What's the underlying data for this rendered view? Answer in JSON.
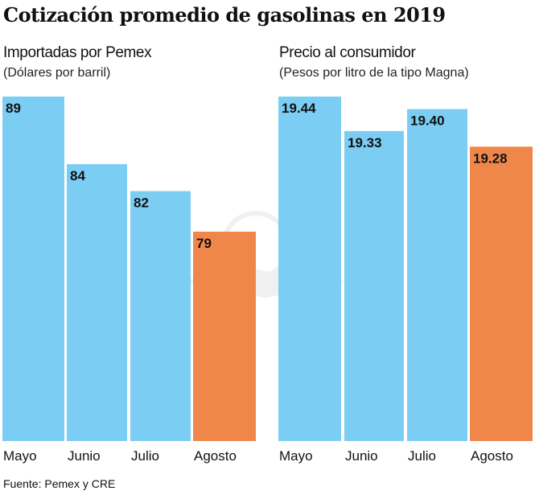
{
  "title": "Cotización promedio de gasolinas en 2019",
  "source": "Fuente: Pemex y CRE",
  "colors": {
    "regular": "#7ccdf4",
    "highlight": "#f0874a"
  },
  "chart_data": [
    {
      "type": "bar",
      "title": "Importadas por Pemex",
      "subtitle": "(Dólares por barril)",
      "categories": [
        "Mayo",
        "Junio",
        "Julio",
        "Agosto"
      ],
      "values": [
        89,
        84,
        82,
        79
      ],
      "labels": [
        "89",
        "84",
        "82",
        "79"
      ],
      "highlight": [
        false,
        false,
        false,
        true
      ],
      "ylim": [
        63.5,
        89
      ],
      "grid": false
    },
    {
      "type": "bar",
      "title": "Precio al consumidor",
      "subtitle": "(Pesos por litro de la tipo Magna)",
      "categories": [
        "Mayo",
        "Junio",
        "Julio",
        "Agosto"
      ],
      "values": [
        19.44,
        19.33,
        19.4,
        19.28
      ],
      "labels": [
        "19.44",
        "19.33",
        "19.40",
        "19.28"
      ],
      "highlight": [
        false,
        false,
        false,
        true
      ],
      "ylim": [
        18.34,
        19.44
      ],
      "grid": false
    }
  ]
}
